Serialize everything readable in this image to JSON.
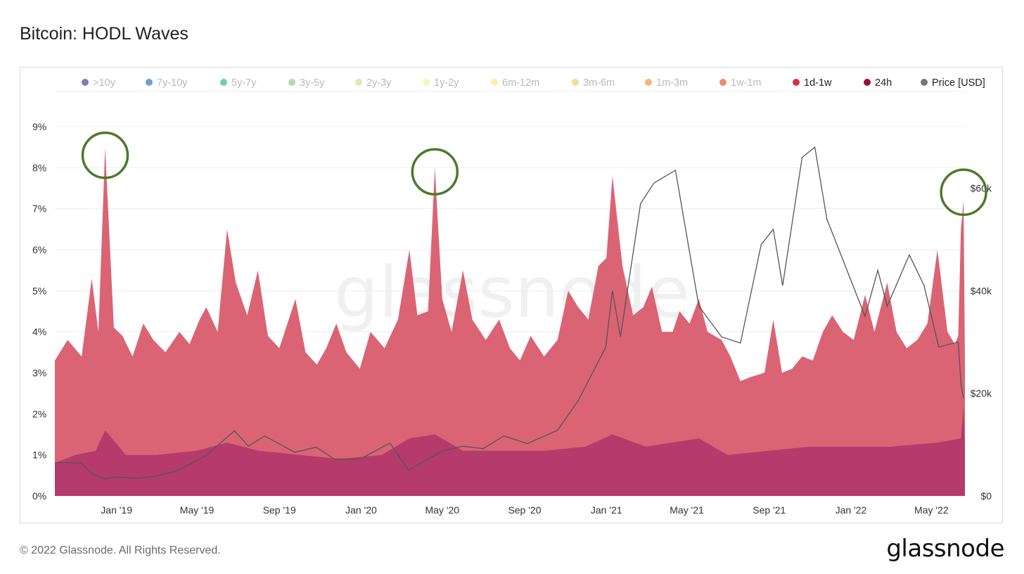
{
  "header": {
    "title": "Bitcoin: HODL Waves"
  },
  "footer": {
    "copyright": "© 2022 Glassnode. All Rights Reserved.",
    "brand": "glassnode"
  },
  "watermark": "glassnode",
  "chart_data": {
    "type": "area",
    "title": "Bitcoin: HODL Waves",
    "legend_position": "top",
    "grid": true,
    "legend": [
      {
        "label": ">10y",
        "color": "#5b4e9e",
        "visible": false
      },
      {
        "label": "7y-10y",
        "color": "#3d7fc0",
        "visible": false
      },
      {
        "label": "5y-7y",
        "color": "#3dbba4",
        "visible": false
      },
      {
        "label": "3y-5y",
        "color": "#8fcf9a",
        "visible": false
      },
      {
        "label": "2y-3y",
        "color": "#c6e89a",
        "visible": false
      },
      {
        "label": "1y-2y",
        "color": "#f2f5a6",
        "visible": false
      },
      {
        "label": "6m-12m",
        "color": "#fce894",
        "visible": false
      },
      {
        "label": "3m-6m",
        "color": "#f8cc7c",
        "visible": false
      },
      {
        "label": "1m-3m",
        "color": "#f29a56",
        "visible": false
      },
      {
        "label": "1w-1m",
        "color": "#ea6146",
        "visible": false
      },
      {
        "label": "1d-1w",
        "color": "#d0344d",
        "visible": true
      },
      {
        "label": "24h",
        "color": "#9b0e43",
        "visible": true
      },
      {
        "label": "Price [USD]",
        "color": "#777777",
        "visible": true
      }
    ],
    "x_ticks": [
      "Jan '19",
      "May '19",
      "Sep '19",
      "Jan '20",
      "May '20",
      "Sep '20",
      "Jan '21",
      "May '21",
      "Sep '21",
      "Jan '22",
      "May '22"
    ],
    "x_range": [
      "2018-10-01",
      "2022-06-20"
    ],
    "y_left": {
      "ticks": [
        "0%",
        "1%",
        "2%",
        "3%",
        "4%",
        "5%",
        "6%",
        "7%",
        "8%",
        "9%"
      ],
      "range": [
        0,
        9
      ]
    },
    "y_right": {
      "ticks": [
        "$0",
        "$20k",
        "$40k",
        "$60k"
      ],
      "range": [
        0,
        72000
      ]
    },
    "series": [
      {
        "name": "1d-1w",
        "color": "#da6474",
        "points": [
          [
            "2018-10-01",
            3.3
          ],
          [
            "2018-10-20",
            3.8
          ],
          [
            "2018-11-10",
            3.4
          ],
          [
            "2018-11-25",
            5.3
          ],
          [
            "2018-12-05",
            4.0
          ],
          [
            "2018-12-15",
            8.5
          ],
          [
            "2018-12-28",
            4.1
          ],
          [
            "2019-01-10",
            3.9
          ],
          [
            "2019-01-25",
            3.4
          ],
          [
            "2019-02-10",
            4.2
          ],
          [
            "2019-02-25",
            3.8
          ],
          [
            "2019-03-15",
            3.5
          ],
          [
            "2019-04-05",
            4.0
          ],
          [
            "2019-04-20",
            3.7
          ],
          [
            "2019-05-05",
            4.3
          ],
          [
            "2019-05-15",
            4.6
          ],
          [
            "2019-06-01",
            4.0
          ],
          [
            "2019-06-15",
            6.5
          ],
          [
            "2019-06-28",
            5.2
          ],
          [
            "2019-07-15",
            4.4
          ],
          [
            "2019-07-31",
            5.5
          ],
          [
            "2019-08-15",
            3.9
          ],
          [
            "2019-09-01",
            3.6
          ],
          [
            "2019-09-25",
            4.8
          ],
          [
            "2019-10-10",
            3.5
          ],
          [
            "2019-10-27",
            3.2
          ],
          [
            "2019-11-10",
            3.6
          ],
          [
            "2019-11-25",
            4.2
          ],
          [
            "2019-12-10",
            3.5
          ],
          [
            "2019-12-30",
            3.1
          ],
          [
            "2020-01-15",
            4.0
          ],
          [
            "2020-02-05",
            3.6
          ],
          [
            "2020-02-25",
            4.3
          ],
          [
            "2020-03-13",
            6.0
          ],
          [
            "2020-03-25",
            4.4
          ],
          [
            "2020-04-10",
            4.5
          ],
          [
            "2020-04-20",
            8.0
          ],
          [
            "2020-05-01",
            4.8
          ],
          [
            "2020-05-15",
            4.0
          ],
          [
            "2020-06-01",
            5.5
          ],
          [
            "2020-06-15",
            4.3
          ],
          [
            "2020-07-05",
            3.8
          ],
          [
            "2020-07-25",
            4.3
          ],
          [
            "2020-08-10",
            3.6
          ],
          [
            "2020-08-25",
            3.3
          ],
          [
            "2020-09-10",
            3.9
          ],
          [
            "2020-09-30",
            3.4
          ],
          [
            "2020-10-20",
            3.8
          ],
          [
            "2020-11-05",
            5.0
          ],
          [
            "2020-11-20",
            4.6
          ],
          [
            "2020-12-05",
            4.3
          ],
          [
            "2020-12-20",
            5.6
          ],
          [
            "2021-01-01",
            5.8
          ],
          [
            "2021-01-10",
            7.8
          ],
          [
            "2021-01-25",
            5.6
          ],
          [
            "2021-02-10",
            4.4
          ],
          [
            "2021-02-25",
            4.6
          ],
          [
            "2021-03-10",
            5.1
          ],
          [
            "2021-03-25",
            4.0
          ],
          [
            "2021-04-10",
            4.0
          ],
          [
            "2021-04-20",
            4.5
          ],
          [
            "2021-05-05",
            4.2
          ],
          [
            "2021-05-19",
            4.8
          ],
          [
            "2021-06-01",
            4.0
          ],
          [
            "2021-06-22",
            3.8
          ],
          [
            "2021-07-05",
            3.4
          ],
          [
            "2021-07-20",
            2.8
          ],
          [
            "2021-08-05",
            2.9
          ],
          [
            "2021-08-25",
            3.0
          ],
          [
            "2021-09-07",
            4.3
          ],
          [
            "2021-09-20",
            3.0
          ],
          [
            "2021-10-05",
            3.1
          ],
          [
            "2021-10-20",
            3.4
          ],
          [
            "2021-11-05",
            3.3
          ],
          [
            "2021-11-20",
            4.0
          ],
          [
            "2021-12-04",
            4.4
          ],
          [
            "2021-12-20",
            4.0
          ],
          [
            "2022-01-05",
            3.8
          ],
          [
            "2022-01-22",
            4.9
          ],
          [
            "2022-02-05",
            4.0
          ],
          [
            "2022-02-24",
            5.2
          ],
          [
            "2022-03-10",
            4.0
          ],
          [
            "2022-03-25",
            3.6
          ],
          [
            "2022-04-10",
            3.8
          ],
          [
            "2022-04-25",
            4.2
          ],
          [
            "2022-05-10",
            6.0
          ],
          [
            "2022-05-25",
            4.0
          ],
          [
            "2022-06-05",
            3.7
          ],
          [
            "2022-06-10",
            3.9
          ],
          [
            "2022-06-14",
            6.5
          ],
          [
            "2022-06-18",
            7.2
          ],
          [
            "2022-06-20",
            3.3
          ]
        ]
      },
      {
        "name": "24h",
        "color": "#b43b6c",
        "points": [
          [
            "2018-10-01",
            0.8
          ],
          [
            "2018-11-01",
            1.0
          ],
          [
            "2018-12-01",
            1.1
          ],
          [
            "2018-12-15",
            1.6
          ],
          [
            "2019-01-15",
            1.0
          ],
          [
            "2019-03-01",
            1.0
          ],
          [
            "2019-05-01",
            1.1
          ],
          [
            "2019-06-15",
            1.3
          ],
          [
            "2019-08-01",
            1.1
          ],
          [
            "2019-10-01",
            1.0
          ],
          [
            "2019-12-01",
            0.9
          ],
          [
            "2020-02-01",
            1.0
          ],
          [
            "2020-03-13",
            1.4
          ],
          [
            "2020-04-20",
            1.5
          ],
          [
            "2020-06-01",
            1.1
          ],
          [
            "2020-08-01",
            1.1
          ],
          [
            "2020-10-01",
            1.1
          ],
          [
            "2020-12-01",
            1.2
          ],
          [
            "2021-01-10",
            1.5
          ],
          [
            "2021-03-01",
            1.2
          ],
          [
            "2021-05-19",
            1.4
          ],
          [
            "2021-07-01",
            1.0
          ],
          [
            "2021-09-01",
            1.1
          ],
          [
            "2021-11-01",
            1.2
          ],
          [
            "2022-01-01",
            1.2
          ],
          [
            "2022-03-01",
            1.2
          ],
          [
            "2022-05-10",
            1.3
          ],
          [
            "2022-06-14",
            1.4
          ],
          [
            "2022-06-18",
            2.2
          ],
          [
            "2022-06-20",
            1.2
          ]
        ]
      },
      {
        "name": "Price [USD]",
        "color": "#555555",
        "axis": "right",
        "points": [
          [
            "2018-10-01",
            6500
          ],
          [
            "2018-11-10",
            6400
          ],
          [
            "2018-11-25",
            4300
          ],
          [
            "2018-12-15",
            3300
          ],
          [
            "2018-12-31",
            3700
          ],
          [
            "2019-02-01",
            3450
          ],
          [
            "2019-03-01",
            3850
          ],
          [
            "2019-04-02",
            4900
          ],
          [
            "2019-05-15",
            7900
          ],
          [
            "2019-06-26",
            12700
          ],
          [
            "2019-07-17",
            9700
          ],
          [
            "2019-08-10",
            11700
          ],
          [
            "2019-09-24",
            8500
          ],
          [
            "2019-10-26",
            9500
          ],
          [
            "2019-11-22",
            7200
          ],
          [
            "2019-12-31",
            7200
          ],
          [
            "2020-02-13",
            10300
          ],
          [
            "2020-03-12",
            5000
          ],
          [
            "2020-04-30",
            8700
          ],
          [
            "2020-06-01",
            9700
          ],
          [
            "2020-07-01",
            9200
          ],
          [
            "2020-08-01",
            11700
          ],
          [
            "2020-09-05",
            10200
          ],
          [
            "2020-10-20",
            12800
          ],
          [
            "2020-11-20",
            18600
          ],
          [
            "2020-12-31",
            29000
          ],
          [
            "2021-01-10",
            40000
          ],
          [
            "2021-01-22",
            31000
          ],
          [
            "2021-02-21",
            57000
          ],
          [
            "2021-03-13",
            61000
          ],
          [
            "2021-04-14",
            63500
          ],
          [
            "2021-05-19",
            37000
          ],
          [
            "2021-06-22",
            31000
          ],
          [
            "2021-07-20",
            29800
          ],
          [
            "2021-08-20",
            49000
          ],
          [
            "2021-09-07",
            52000
          ],
          [
            "2021-09-21",
            41000
          ],
          [
            "2021-10-20",
            66000
          ],
          [
            "2021-11-08",
            68000
          ],
          [
            "2021-11-26",
            54000
          ],
          [
            "2021-12-20",
            46000
          ],
          [
            "2022-01-22",
            35000
          ],
          [
            "2022-02-10",
            44000
          ],
          [
            "2022-02-24",
            37000
          ],
          [
            "2022-03-29",
            47000
          ],
          [
            "2022-04-20",
            41000
          ],
          [
            "2022-05-12",
            29000
          ],
          [
            "2022-06-10",
            30000
          ],
          [
            "2022-06-14",
            22000
          ],
          [
            "2022-06-18",
            19000
          ]
        ]
      }
    ],
    "annotations": [
      {
        "type": "circle",
        "date": "2018-12-15",
        "value": 8.3
      },
      {
        "type": "circle",
        "date": "2020-04-20",
        "value": 7.9
      },
      {
        "type": "circle",
        "date": "2022-06-18",
        "value": 7.4
      }
    ]
  }
}
